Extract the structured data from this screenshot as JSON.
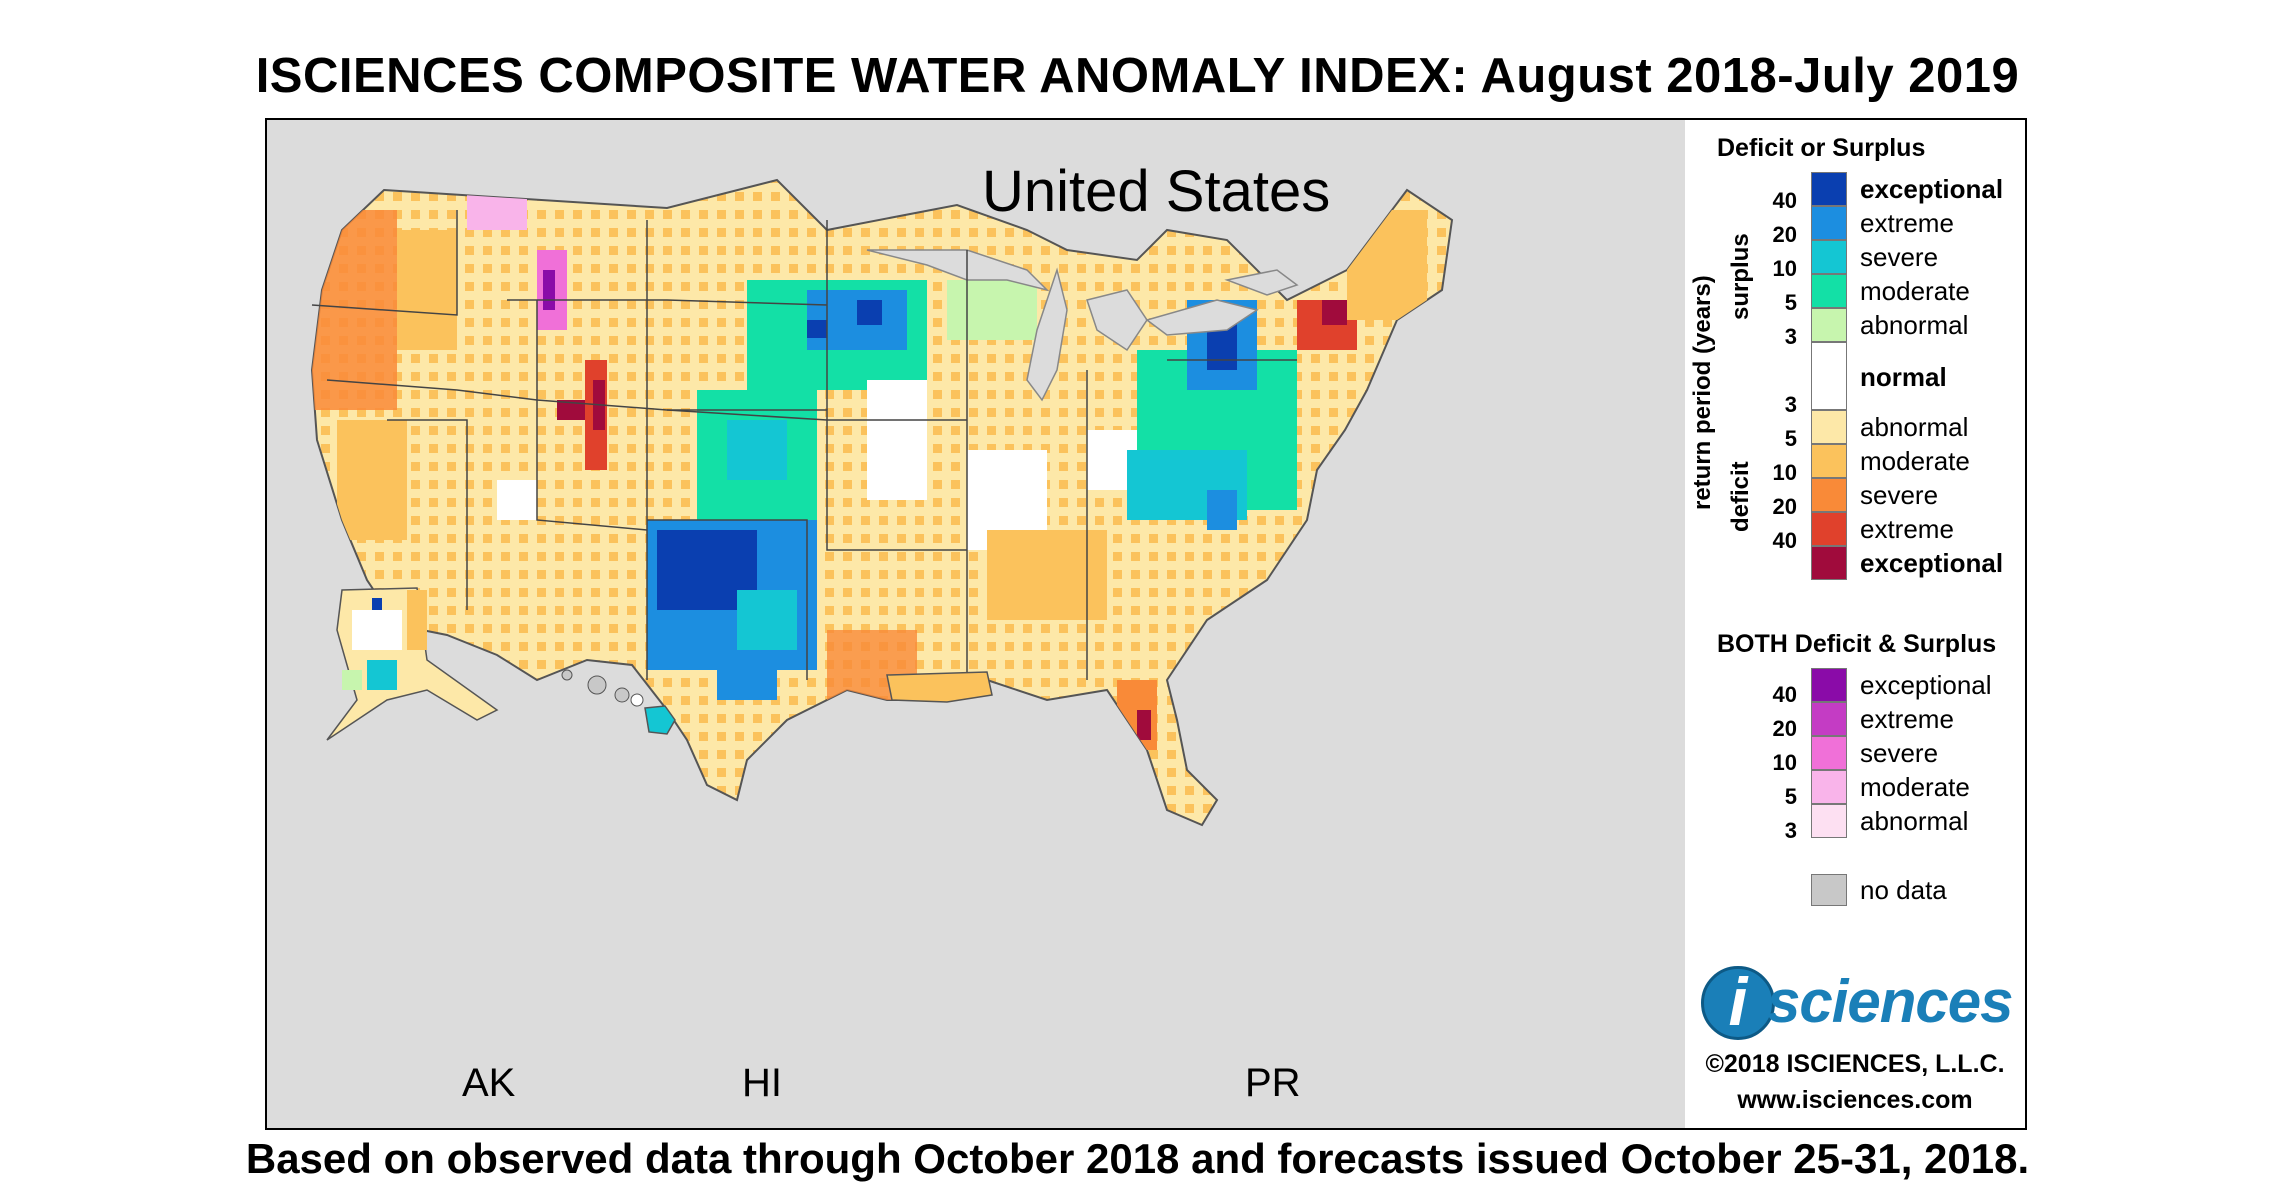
{
  "title": "ISCIENCES COMPOSITE WATER ANOMALY INDEX: August 2018-July 2019",
  "subtitle": "Based on observed data through October 2018 and forecasts issued October 25-31, 2018.",
  "map": {
    "region_title": "United States",
    "inset_labels": {
      "ak": "AK",
      "hi": "HI",
      "pr": "PR"
    }
  },
  "legend": {
    "section1_title": "Deficit or Surplus",
    "axis_label": "return period (years)",
    "surplus_label": "surplus",
    "deficit_label": "deficit",
    "surplus": [
      {
        "label": "exceptional",
        "period": "40",
        "color": "#0a3fb0"
      },
      {
        "label": "extreme",
        "period": "20",
        "color": "#1c8ee0"
      },
      {
        "label": "severe",
        "period": "10",
        "color": "#14c6d3"
      },
      {
        "label": "moderate",
        "period": "5",
        "color": "#13e0a6"
      },
      {
        "label": "abnormal",
        "period": "3",
        "color": "#c7f5ae"
      }
    ],
    "normal": {
      "label": "normal",
      "color": "#ffffff"
    },
    "deficit": [
      {
        "label": "abnormal",
        "period": "3",
        "color": "#fde8a8"
      },
      {
        "label": "moderate",
        "period": "5",
        "color": "#fbc25c"
      },
      {
        "label": "severe",
        "period": "10",
        "color": "#f98a38"
      },
      {
        "label": "extreme",
        "period": "20",
        "color": "#e0412c"
      },
      {
        "label": "exceptional",
        "period": "40",
        "color": "#a00b3c"
      }
    ],
    "section2_title": "BOTH Deficit & Surplus",
    "both": [
      {
        "label": "exceptional",
        "period": "40",
        "color": "#8a0ba8"
      },
      {
        "label": "extreme",
        "period": "20",
        "color": "#c43cc4"
      },
      {
        "label": "severe",
        "period": "10",
        "color": "#f070d8"
      },
      {
        "label": "moderate",
        "period": "5",
        "color": "#f9b4ea"
      },
      {
        "label": "abnormal",
        "period": "3",
        "color": "#fde0f2"
      }
    ],
    "nodata": {
      "label": "no data",
      "color": "#c8c8c8"
    }
  },
  "logo": {
    "mark": "i",
    "wordmark": "sciences",
    "copyright": "©2018 ISCIENCES, L.L.C.",
    "url": "www.isciences.com"
  }
}
